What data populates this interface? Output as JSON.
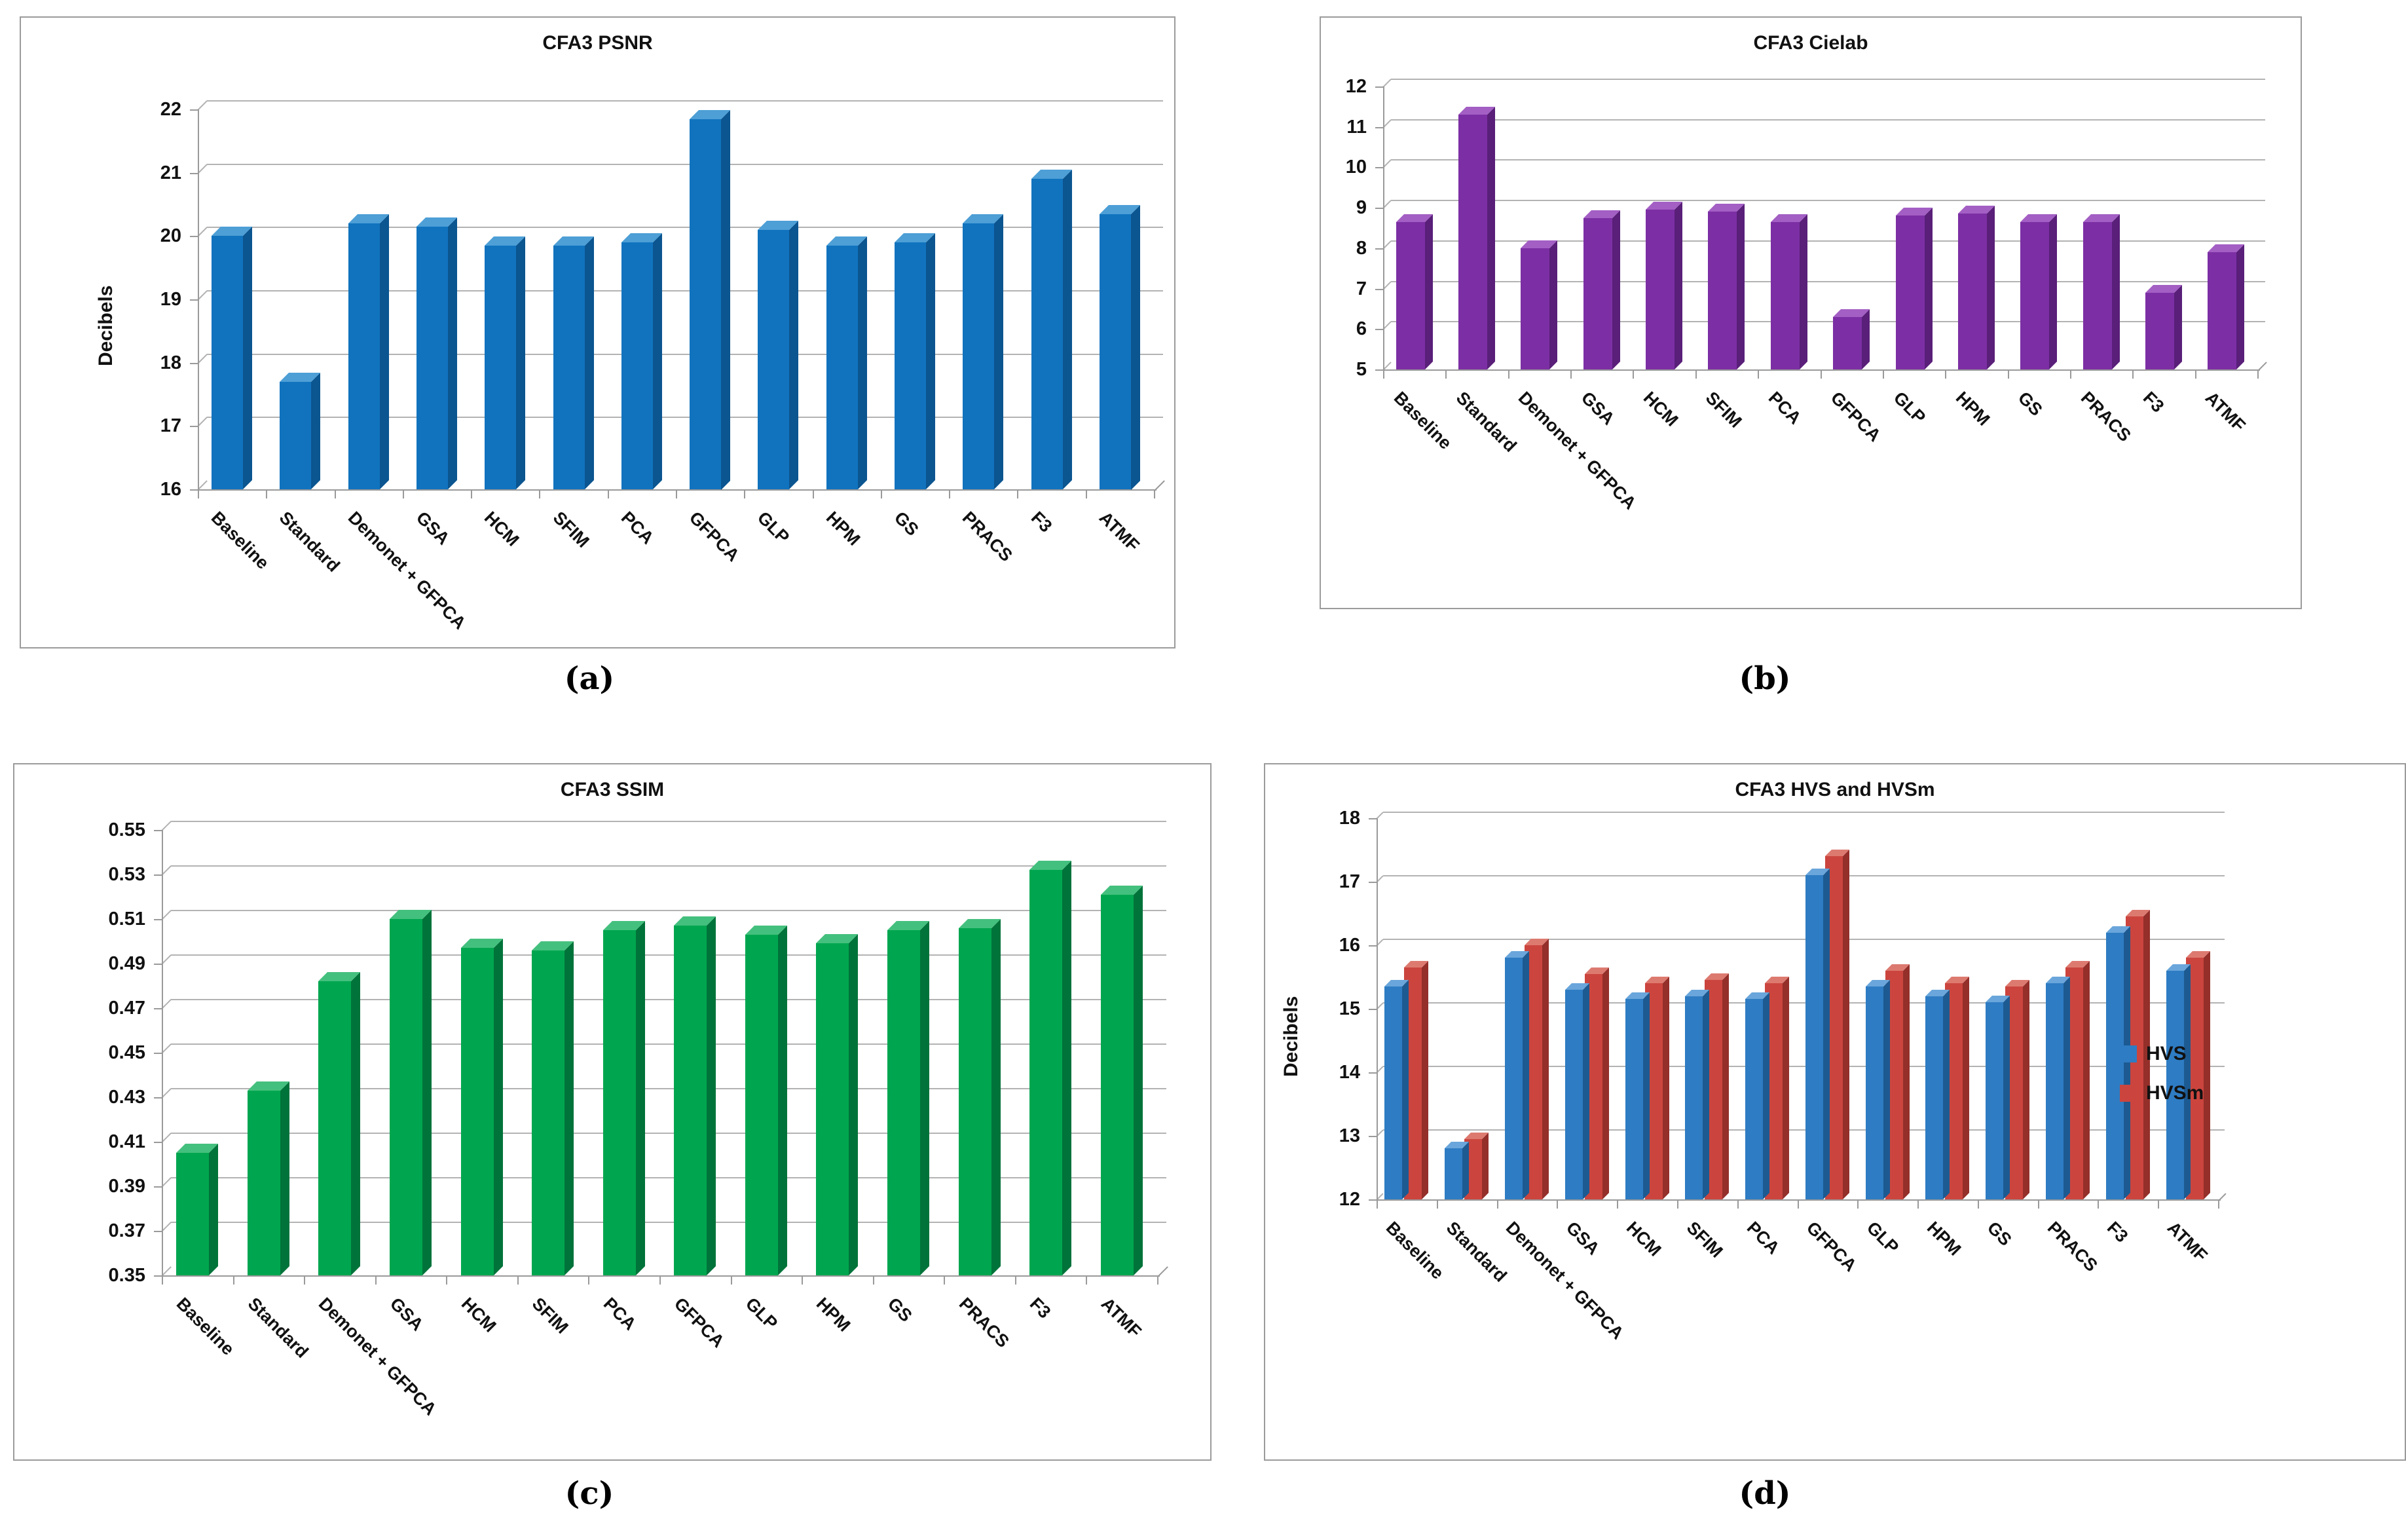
{
  "figure": {
    "panel_letters": [
      "(a)",
      "(b)",
      "(c)",
      "(d)"
    ]
  },
  "chart_data": [
    {
      "id": "a",
      "type": "bar",
      "title": "CFA3 PSNR",
      "ylabel": "Decibels",
      "panel_label": "(a)",
      "ymin": 16,
      "ymax": 22,
      "ystep": 1,
      "ydecimals": 0,
      "grid": true,
      "legend_position": "none",
      "categories": [
        "Baseline",
        "Standard",
        "Demonet + GFPCA",
        "GSA",
        "HCM",
        "SFIM",
        "PCA",
        "GFPCA",
        "GLP",
        "HPM",
        "GS",
        "PRACS",
        "F3",
        "ATMF"
      ],
      "series": [
        {
          "name": "PSNR",
          "color": "#1173BE",
          "color_light": "#4D9FD6",
          "color_dark": "#0B5590",
          "values": [
            20.0,
            17.7,
            20.2,
            20.15,
            19.85,
            19.85,
            19.9,
            21.85,
            20.1,
            19.85,
            19.9,
            20.2,
            20.9,
            20.35
          ]
        }
      ]
    },
    {
      "id": "b",
      "type": "bar",
      "title": "CFA3 Cielab",
      "ylabel": "",
      "panel_label": "(b)",
      "ymin": 5,
      "ymax": 12,
      "ystep": 1,
      "ydecimals": 0,
      "grid": true,
      "legend_position": "none",
      "categories": [
        "Baseline",
        "Standard",
        "Demonet + GFPCA",
        "GSA",
        "HCM",
        "SFIM",
        "PCA",
        "GFPCA",
        "GLP",
        "HPM",
        "GS",
        "PRACS",
        "F3",
        "ATMF"
      ],
      "series": [
        {
          "name": "Cielab",
          "color": "#7C2FA4",
          "color_light": "#A35FC4",
          "color_dark": "#591F79",
          "values": [
            8.65,
            11.3,
            8.0,
            8.75,
            8.95,
            8.9,
            8.65,
            6.3,
            8.8,
            8.85,
            8.65,
            8.65,
            6.9,
            7.9
          ]
        }
      ]
    },
    {
      "id": "c",
      "type": "bar",
      "title": "CFA3 SSIM",
      "ylabel": "",
      "panel_label": "(c)",
      "ymin": 0.35,
      "ymax": 0.55,
      "ystep": 0.02,
      "ydecimals": 2,
      "grid": true,
      "legend_position": "none",
      "categories": [
        "Baseline",
        "Standard",
        "Demonet + GFPCA",
        "GSA",
        "HCM",
        "SFIM",
        "PCA",
        "GFPCA",
        "GLP",
        "HPM",
        "GS",
        "PRACS",
        "F3",
        "ATMF"
      ],
      "series": [
        {
          "name": "SSIM",
          "color": "#00A64F",
          "color_light": "#44C07E",
          "color_dark": "#00733A",
          "values": [
            0.405,
            0.433,
            0.482,
            0.51,
            0.497,
            0.496,
            0.505,
            0.507,
            0.503,
            0.499,
            0.505,
            0.506,
            0.532,
            0.521
          ]
        }
      ]
    },
    {
      "id": "d",
      "type": "bar",
      "title": "CFA3 HVS and HVSm",
      "ylabel": "Decibels",
      "panel_label": "(d)",
      "ymin": 12,
      "ymax": 18,
      "ystep": 1,
      "ydecimals": 0,
      "grid": true,
      "legend_position": "right",
      "categories": [
        "Baseline",
        "Standard",
        "Demonet + GFPCA",
        "GSA",
        "HCM",
        "SFIM",
        "PCA",
        "GFPCA",
        "GLP",
        "HPM",
        "GS",
        "PRACS",
        "F3",
        "ATMF"
      ],
      "series": [
        {
          "name": "HVS",
          "color": "#2E7CC3",
          "color_light": "#6AA6DB",
          "color_dark": "#1D5A92",
          "values": [
            15.35,
            12.8,
            15.8,
            15.3,
            15.15,
            15.2,
            15.15,
            17.1,
            15.35,
            15.2,
            15.1,
            15.4,
            16.2,
            15.6
          ]
        },
        {
          "name": "HVSm",
          "color": "#CB453E",
          "color_light": "#DD7A70",
          "color_dark": "#942F2A",
          "values": [
            15.65,
            12.95,
            16.0,
            15.55,
            15.4,
            15.45,
            15.4,
            17.4,
            15.6,
            15.4,
            15.35,
            15.65,
            16.45,
            15.8
          ]
        }
      ]
    }
  ]
}
